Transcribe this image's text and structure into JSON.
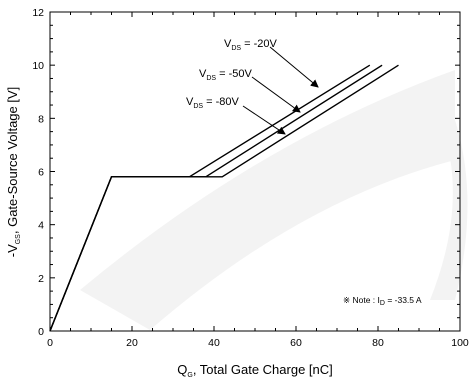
{
  "chart_data": {
    "type": "line",
    "xlabel": {
      "main": "Q",
      "sub": "G",
      "rest": ", Total Gate Charge [nC]"
    },
    "ylabel": {
      "prefix": "-V",
      "sub": "GS",
      "rest": ", Gate-Source Voltage [V]"
    },
    "xlim": [
      0,
      100
    ],
    "ylim": [
      0,
      12
    ],
    "xticks": [
      0,
      20,
      40,
      60,
      80,
      100
    ],
    "yticks": [
      0,
      2,
      4,
      6,
      8,
      10,
      12
    ],
    "grid": false,
    "series": [
      {
        "name": {
          "prefix": "V",
          "sub": "DS",
          "rest": " = -20V"
        },
        "x": [
          0,
          15,
          34,
          78
        ],
        "y": [
          0,
          5.8,
          5.8,
          10
        ]
      },
      {
        "name": {
          "prefix": "V",
          "sub": "DS",
          "rest": " = -50V"
        },
        "x": [
          0,
          15,
          38,
          81
        ],
        "y": [
          0,
          5.8,
          5.8,
          10
        ]
      },
      {
        "name": {
          "prefix": "V",
          "sub": "DS",
          "rest": " = -80V"
        },
        "x": [
          0,
          15,
          42,
          85
        ],
        "y": [
          0,
          5.8,
          5.8,
          10
        ]
      }
    ],
    "note": {
      "prefix": "※ Note : I",
      "sub": "D",
      "rest": " = -33.5 A"
    }
  }
}
